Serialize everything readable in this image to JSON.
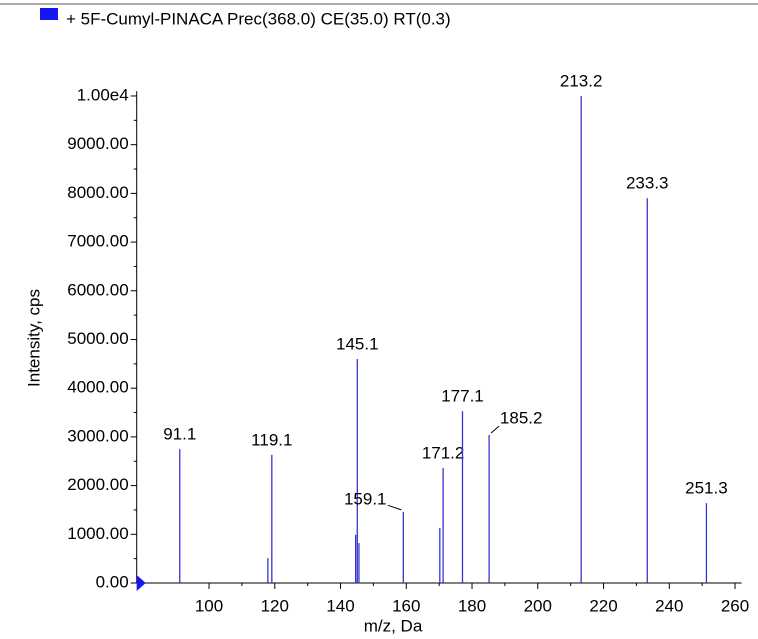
{
  "chart_data": {
    "type": "stick",
    "series": [
      {
        "name": "+ 5F-Cumyl-PINACA Prec(368.0) CE(35.0) RT(0.3)",
        "color": "#3535d0",
        "legend_color": "#1515f5"
      }
    ],
    "x": [
      91.1,
      117.9,
      119.1,
      144.6,
      145.1,
      145.6,
      159.1,
      170.2,
      171.2,
      177.1,
      185.2,
      213.2,
      233.3,
      251.3
    ],
    "values": [
      2750,
      510,
      2630,
      990,
      4600,
      820,
      1460,
      1130,
      2360,
      3530,
      3040,
      10000,
      7900,
      1640
    ],
    "peak_labels": [
      "91.1",
      null,
      "119.1",
      null,
      "145.1",
      null,
      "159.1",
      null,
      "171.2",
      "177.1",
      "185.2",
      "213.2",
      "233.3",
      "251.3"
    ],
    "xlabel": "m/z, Da",
    "ylabel": "Intensity, cps",
    "xlim": [
      78,
      262
    ],
    "ylim": [
      0,
      10100
    ],
    "xticks": [
      100,
      120,
      140,
      160,
      180,
      200,
      220,
      240,
      260
    ],
    "yticks": [
      {
        "value": 0,
        "label": "0.00"
      },
      {
        "value": 1000,
        "label": "1000.00"
      },
      {
        "value": 2000,
        "label": "2000.00"
      },
      {
        "value": 3000,
        "label": "3000.00"
      },
      {
        "value": 4000,
        "label": "4000.00"
      },
      {
        "value": 5000,
        "label": "5000.00"
      },
      {
        "value": 6000,
        "label": "6000.00"
      },
      {
        "value": 7000,
        "label": "7000.00"
      },
      {
        "value": 8000,
        "label": "8000.00"
      },
      {
        "value": 9000,
        "label": "9000.00"
      },
      {
        "value": 10000,
        "label": "1.00e4"
      }
    ]
  }
}
